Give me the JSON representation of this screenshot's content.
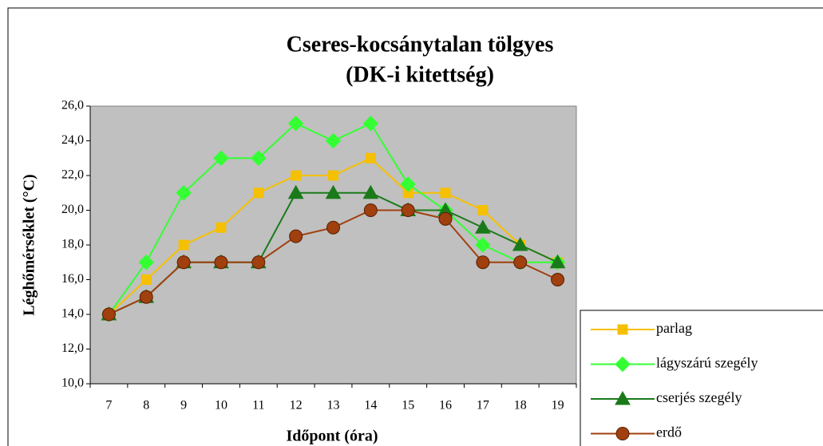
{
  "chart_data": {
    "type": "line",
    "title": [
      "Cseres-kocsánytalan tölgyes",
      "(DK-i kitettség)"
    ],
    "x_label": "Időpont (óra)",
    "y_label": "Léghőmérséklet (°C)",
    "categories": [
      "7",
      "8",
      "9",
      "10",
      "11",
      "12",
      "13",
      "14",
      "15",
      "16",
      "17",
      "18",
      "19"
    ],
    "ylim": [
      10,
      26
    ],
    "yticks": [
      {
        "value": 10,
        "label": "10,0"
      },
      {
        "value": 12,
        "label": "12,0"
      },
      {
        "value": 14,
        "label": "14,0"
      },
      {
        "value": 16,
        "label": "16,0"
      },
      {
        "value": 18,
        "label": "18,0"
      },
      {
        "value": 20,
        "label": "20,0"
      },
      {
        "value": 22,
        "label": "22,0"
      },
      {
        "value": 24,
        "label": "24,0"
      },
      {
        "value": 26,
        "label": "26,0"
      }
    ],
    "series": [
      {
        "name": "parlag",
        "color": "#f5c000",
        "marker": "square",
        "values": [
          14,
          16,
          18,
          19,
          21,
          22,
          22,
          23,
          21,
          21,
          20,
          18,
          17
        ]
      },
      {
        "name": "lágyszárú szegély",
        "color": "#33ff33",
        "marker": "diamond",
        "values": [
          14,
          17,
          21,
          23,
          23,
          25,
          24,
          25,
          21.5,
          20,
          18,
          17,
          17
        ]
      },
      {
        "name": "cserjés szegély",
        "color": "#1a7a1a",
        "marker": "triangle",
        "values": [
          14,
          15,
          17,
          17,
          17,
          21,
          21,
          21,
          20,
          20,
          19,
          18,
          17
        ]
      },
      {
        "name": "erdő",
        "color": "#a0400f",
        "marker": "circle",
        "values": [
          14,
          15,
          17,
          17,
          17,
          18.5,
          19,
          20,
          20,
          19.5,
          17,
          17,
          16
        ]
      }
    ]
  }
}
